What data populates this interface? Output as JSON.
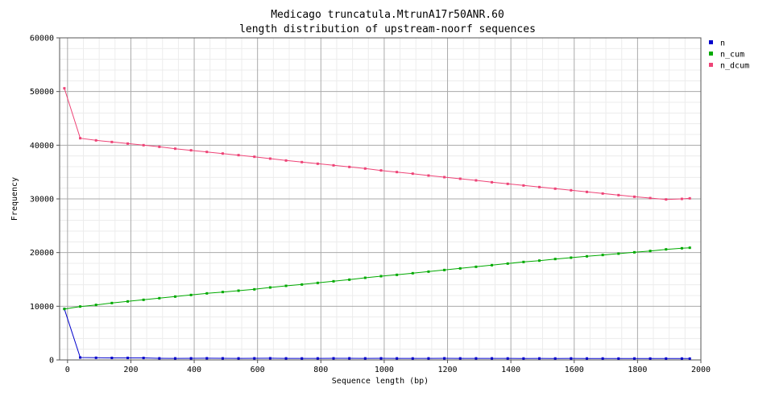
{
  "chart_data": {
    "type": "line",
    "title": "Medicago truncatula.MtrunA17r50ANR.60",
    "subtitle": "length distribution of upstream-noorf sequences",
    "xlabel": "Sequence length (bp)",
    "ylabel": "Frequency",
    "xlim": [
      -25,
      2000
    ],
    "ylim": [
      0,
      60000
    ],
    "xticks": [
      0,
      200,
      400,
      600,
      800,
      1000,
      1200,
      1400,
      1600,
      1800,
      2000
    ],
    "yticks": [
      0,
      10000,
      20000,
      30000,
      40000,
      50000,
      60000
    ],
    "grid": true,
    "legend_position": "top-right",
    "x": [
      -10,
      40,
      90,
      140,
      190,
      240,
      290,
      340,
      390,
      440,
      490,
      540,
      590,
      640,
      690,
      740,
      790,
      840,
      890,
      940,
      990,
      1040,
      1090,
      1140,
      1190,
      1240,
      1290,
      1340,
      1390,
      1440,
      1490,
      1540,
      1590,
      1640,
      1690,
      1740,
      1790,
      1840,
      1890,
      1940,
      1965
    ],
    "series": [
      {
        "name": "n",
        "color": "#0000cc",
        "values": [
          9500,
          450,
          400,
          380,
          380,
          370,
          300,
          290,
          300,
          310,
          300,
          290,
          300,
          310,
          290,
          280,
          290,
          300,
          300,
          290,
          300,
          290,
          280,
          290,
          300,
          290,
          290,
          290,
          280,
          270,
          280,
          270,
          280,
          270,
          270,
          260,
          270,
          260,
          260,
          260,
          250
        ]
      },
      {
        "name": "n_cum",
        "color": "#00aa00",
        "values": [
          9500,
          9950,
          10250,
          10600,
          10900,
          11200,
          11500,
          11800,
          12100,
          12400,
          12650,
          12900,
          13150,
          13500,
          13800,
          14050,
          14350,
          14650,
          14950,
          15300,
          15600,
          15850,
          16150,
          16450,
          16750,
          17050,
          17350,
          17650,
          17950,
          18250,
          18500,
          18800,
          19050,
          19300,
          19550,
          19800,
          20050,
          20300,
          20600,
          20800,
          20900
        ]
      },
      {
        "name": "n_dcum",
        "color": "#ee4477",
        "values": [
          50600,
          41300,
          40900,
          40600,
          40300,
          40000,
          39700,
          39350,
          39050,
          38750,
          38450,
          38150,
          37850,
          37500,
          37150,
          36850,
          36550,
          36250,
          35950,
          35650,
          35300,
          35000,
          34700,
          34350,
          34050,
          33750,
          33450,
          33100,
          32800,
          32500,
          32200,
          31900,
          31600,
          31300,
          31000,
          30700,
          30400,
          30150,
          29900,
          30000,
          30100
        ]
      }
    ]
  }
}
